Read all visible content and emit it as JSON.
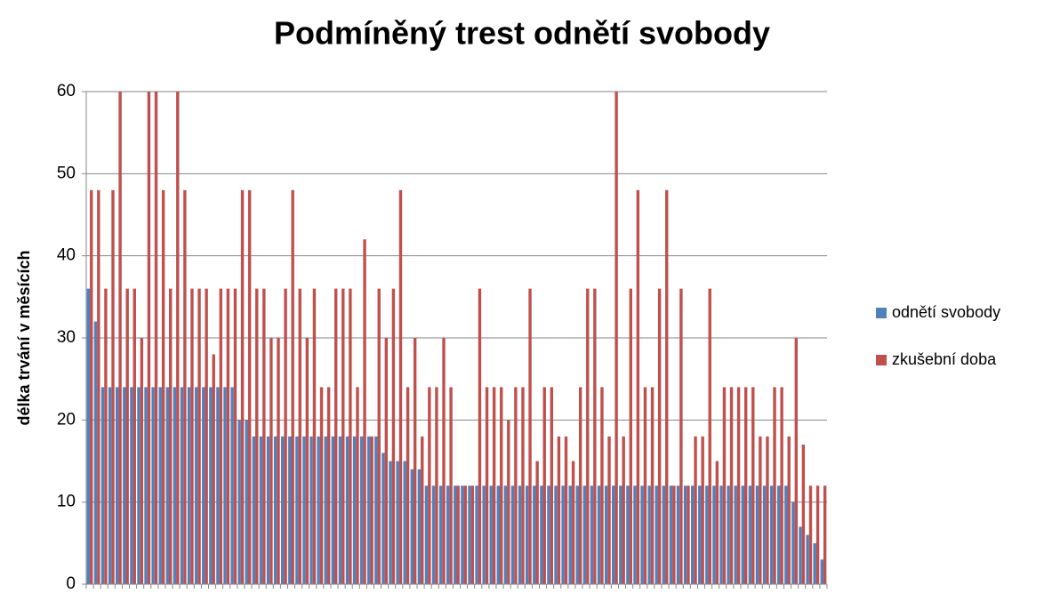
{
  "chart_data": {
    "type": "bar",
    "title": "Podmíněný trest odnětí svobody",
    "y_label": "délka trvání v měsících",
    "categories": [
      null,
      null,
      null,
      null,
      null,
      null,
      null,
      null,
      null,
      null,
      null,
      null,
      null,
      null,
      null,
      null,
      null,
      null,
      null,
      null,
      null,
      null,
      null,
      null,
      null,
      null,
      null,
      null,
      null,
      null,
      null,
      null,
      null,
      null,
      null,
      null,
      null,
      null,
      null,
      null,
      null,
      null,
      null,
      null,
      null,
      null,
      null,
      null,
      null,
      null,
      null,
      null,
      null,
      null,
      null,
      null,
      null,
      null,
      null,
      null,
      null,
      null,
      null,
      null,
      null,
      null,
      null,
      null,
      null,
      null,
      null,
      null,
      null,
      null,
      null,
      null,
      null,
      null,
      null,
      null,
      null,
      null,
      null,
      null,
      null,
      null,
      null,
      null,
      null,
      null,
      null,
      null,
      null,
      null,
      null,
      null,
      null,
      null,
      null,
      null,
      null,
      null,
      null
    ],
    "series": [
      {
        "name": "odnětí svobody",
        "color": "#4f81bd",
        "values": [
          36,
          32,
          24,
          24,
          24,
          24,
          24,
          24,
          24,
          24,
          24,
          24,
          24,
          24,
          24,
          24,
          24,
          24,
          24,
          24,
          24,
          20,
          20,
          18,
          18,
          18,
          18,
          18,
          18,
          18,
          18,
          18,
          18,
          18,
          18,
          18,
          18,
          18,
          18,
          18,
          18,
          16,
          15,
          15,
          15,
          14,
          14,
          12,
          12,
          12,
          12,
          12,
          12,
          12,
          12,
          12,
          12,
          12,
          12,
          12,
          12,
          12,
          12,
          12,
          12,
          12,
          12,
          12,
          12,
          12,
          12,
          12,
          12,
          12,
          12,
          12,
          12,
          12,
          12,
          12,
          12,
          12,
          12,
          12,
          12,
          12,
          12,
          12,
          12,
          12,
          12,
          12,
          12,
          12,
          12,
          12,
          12,
          12,
          10,
          7,
          6,
          5,
          3
        ]
      },
      {
        "name": "zkušební doba",
        "color": "#c0504d",
        "values": [
          48,
          48,
          36,
          48,
          60,
          36,
          36,
          30,
          60,
          60,
          48,
          36,
          60,
          48,
          36,
          36,
          36,
          28,
          36,
          36,
          36,
          48,
          48,
          36,
          36,
          30,
          30,
          36,
          48,
          36,
          30,
          36,
          24,
          24,
          36,
          36,
          36,
          24,
          42,
          18,
          36,
          30,
          36,
          48,
          24,
          30,
          18,
          24,
          24,
          30,
          24,
          12,
          12,
          12,
          36,
          24,
          24,
          24,
          20,
          24,
          24,
          36,
          15,
          24,
          24,
          18,
          18,
          15,
          24,
          36,
          36,
          24,
          18,
          60,
          18,
          36,
          48,
          24,
          24,
          36,
          48,
          12,
          36,
          12,
          18,
          18,
          36,
          15,
          24,
          24,
          24,
          24,
          24,
          18,
          18,
          24,
          24,
          18,
          30,
          17,
          12,
          12,
          12
        ]
      }
    ],
    "ylim": [
      0,
      60
    ],
    "yticks": [
      0,
      10,
      20,
      30,
      40,
      50,
      60
    ],
    "grid": true,
    "legend": "right"
  }
}
